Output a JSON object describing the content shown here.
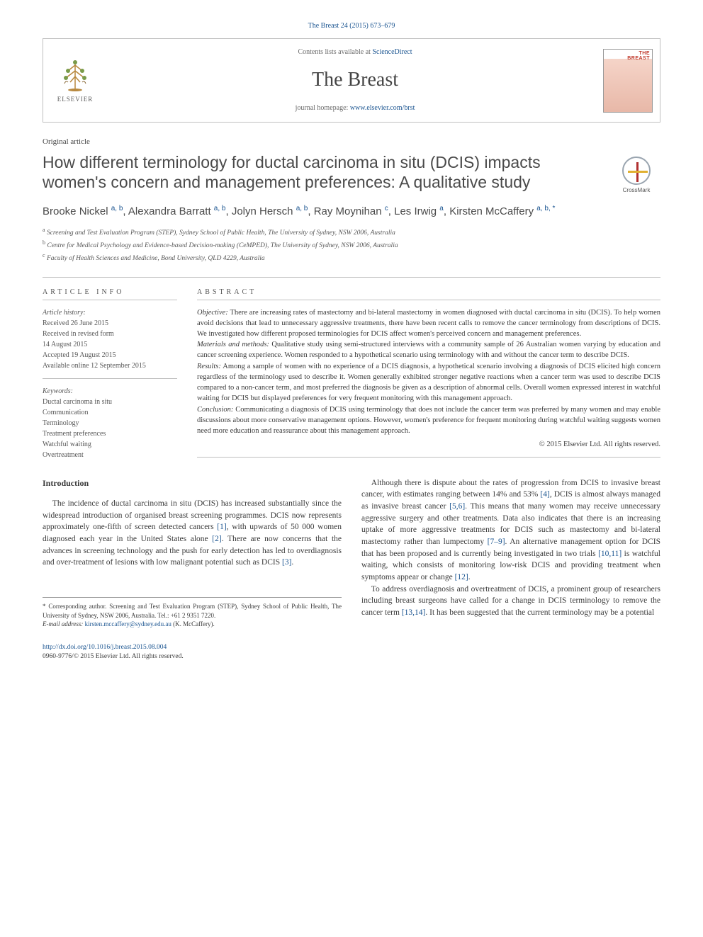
{
  "citation": "The Breast 24 (2015) 673–679",
  "header": {
    "contents_prefix": "Contents lists available at ",
    "contents_link": "ScienceDirect",
    "journal": "The Breast",
    "homepage_prefix": "journal homepage: ",
    "homepage_url": "www.elsevier.com/brst",
    "publisher_label": "ELSEVIER",
    "cover_top": "THE",
    "cover_title": "BREAST"
  },
  "article_type": "Original article",
  "title": "How different terminology for ductal carcinoma in situ (DCIS) impacts women's concern and management preferences: A qualitative study",
  "crossmark_label": "CrossMark",
  "authors_html": "Brooke Nickel <sup>a, b</sup>, Alexandra Barratt <sup>a, b</sup>, Jolyn Hersch <sup>a, b</sup>, Ray Moynihan <sup>c</sup>, Les Irwig <sup>a</sup>, Kirsten McCaffery <sup>a, b, *</sup>",
  "affiliations": [
    {
      "sup": "a",
      "text": "Screening and Test Evaluation Program (STEP), Sydney School of Public Health, The University of Sydney, NSW 2006, Australia"
    },
    {
      "sup": "b",
      "text": "Centre for Medical Psychology and Evidence-based Decision-making (CeMPED), The University of Sydney, NSW 2006, Australia"
    },
    {
      "sup": "c",
      "text": "Faculty of Health Sciences and Medicine, Bond University, QLD 4229, Australia"
    }
  ],
  "info_header": "ARTICLE INFO",
  "abstract_header": "ABSTRACT",
  "history": {
    "label": "Article history:",
    "received": "Received 26 June 2015",
    "revised_prefix": "Received in revised form",
    "revised_date": "14 August 2015",
    "accepted": "Accepted 19 August 2015",
    "online": "Available online 12 September 2015"
  },
  "keywords": {
    "label": "Keywords:",
    "items": [
      "Ductal carcinoma in situ",
      "Communication",
      "Terminology",
      "Treatment preferences",
      "Watchful waiting",
      "Overtreatment"
    ]
  },
  "abstract": {
    "objective_label": "Objective:",
    "objective": "There are increasing rates of mastectomy and bi-lateral mastectomy in women diagnosed with ductal carcinoma in situ (DCIS). To help women avoid decisions that lead to unnecessary aggressive treatments, there have been recent calls to remove the cancer terminology from descriptions of DCIS. We investigated how different proposed terminologies for DCIS affect women's perceived concern and management preferences.",
    "methods_label": "Materials and methods:",
    "methods": "Qualitative study using semi-structured interviews with a community sample of 26 Australian women varying by education and cancer screening experience. Women responded to a hypothetical scenario using terminology with and without the cancer term to describe DCIS.",
    "results_label": "Results:",
    "results": "Among a sample of women with no experience of a DCIS diagnosis, a hypothetical scenario involving a diagnosis of DCIS elicited high concern regardless of the terminology used to describe it. Women generally exhibited stronger negative reactions when a cancer term was used to describe DCIS compared to a non-cancer term, and most preferred the diagnosis be given as a description of abnormal cells. Overall women expressed interest in watchful waiting for DCIS but displayed preferences for very frequent monitoring with this management approach.",
    "conclusion_label": "Conclusion:",
    "conclusion": "Communicating a diagnosis of DCIS using terminology that does not include the cancer term was preferred by many women and may enable discussions about more conservative management options. However, women's preference for frequent monitoring during watchful waiting suggests women need more education and reassurance about this management approach.",
    "copyright": "© 2015 Elsevier Ltd. All rights reserved."
  },
  "intro_title": "Introduction",
  "body": {
    "col1_p1": "The incidence of ductal carcinoma in situ (DCIS) has increased substantially since the widespread introduction of organised breast screening programmes. DCIS now represents approximately one-fifth of screen detected cancers [1], with upwards of 50 000 women diagnosed each year in the United States alone [2]. There are now concerns that the advances in screening technology and the push for early detection has led to overdiagnosis and over-treatment of lesions with low malignant potential such as DCIS [3].",
    "col2_p1": "Although there is dispute about the rates of progression from DCIS to invasive breast cancer, with estimates ranging between 14% and 53% [4], DCIS is almost always managed as invasive breast cancer [5,6]. This means that many women may receive unnecessary aggressive surgery and other treatments. Data also indicates that there is an increasing uptake of more aggressive treatments for DCIS such as mastectomy and bi-lateral mastectomy rather than lumpectomy [7–9]. An alternative management option for DCIS that has been proposed and is currently being investigated in two trials [10,11] is watchful waiting, which consists of monitoring low-risk DCIS and providing treatment when symptoms appear or change [12].",
    "col2_p2": "To address overdiagnosis and overtreatment of DCIS, a prominent group of researchers including breast surgeons have called for a change in DCIS terminology to remove the cancer term [13,14]. It has been suggested that the current terminology may be a potential",
    "refs": {
      "r1": "[1]",
      "r2": "[2]",
      "r3": "[3]",
      "r4": "[4]",
      "r56": "[5,6]",
      "r79": "[7–9]",
      "r1011": "[10,11]",
      "r12": "[12]",
      "r1314": "[13,14]"
    }
  },
  "footnote": {
    "corr_label": "* Corresponding author.",
    "corr_text": "Screening and Test Evaluation Program (STEP), Sydney School of Public Health, The University of Sydney, NSW 2006, Australia. Tel.: +61 2 9351 7220.",
    "email_label": "E-mail address:",
    "email": "kirsten.mccaffery@sydney.edu.au",
    "email_suffix": "(K. McCaffery)."
  },
  "bottom": {
    "doi": "http://dx.doi.org/10.1016/j.breast.2015.08.004",
    "issn_line": "0960-9776/© 2015 Elsevier Ltd. All rights reserved."
  },
  "colors": {
    "link": "#1a5490",
    "text": "#3a3a3a",
    "border": "#bfbfbf",
    "journal_title": "#444444"
  },
  "typography": {
    "title_fontsize": 23,
    "journal_fontsize": 28,
    "body_fontsize": 11.5,
    "abstract_fontsize": 10.5,
    "info_fontsize": 10,
    "affil_fontsize": 9.5
  }
}
